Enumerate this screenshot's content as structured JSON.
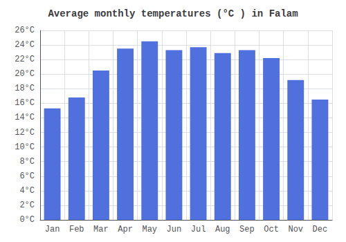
{
  "chart_data": {
    "type": "bar",
    "title": "Average monthly temperatures (°C ) in Falam",
    "categories": [
      "Jan",
      "Feb",
      "Mar",
      "Apr",
      "May",
      "Jun",
      "Jul",
      "Aug",
      "Sep",
      "Oct",
      "Nov",
      "Dec"
    ],
    "values": [
      15.3,
      16.8,
      20.5,
      23.5,
      24.5,
      23.3,
      23.7,
      22.9,
      23.3,
      22.2,
      19.2,
      16.5
    ],
    "ylim": [
      0,
      26
    ],
    "yticks": [
      {
        "value": 0,
        "label": "0°C"
      },
      {
        "value": 2,
        "label": "2°C"
      },
      {
        "value": 4,
        "label": "4°C"
      },
      {
        "value": 6,
        "label": "6°C"
      },
      {
        "value": 8,
        "label": "8°C"
      },
      {
        "value": 10,
        "label": "10°C"
      },
      {
        "value": 12,
        "label": "12°C"
      },
      {
        "value": 14,
        "label": "14°C"
      },
      {
        "value": 16,
        "label": "16°C"
      },
      {
        "value": 18,
        "label": "18°C"
      },
      {
        "value": 20,
        "label": "20°C"
      },
      {
        "value": 22,
        "label": "22°C"
      },
      {
        "value": 24,
        "label": "24°C"
      },
      {
        "value": 26,
        "label": "26°C"
      }
    ],
    "grid": true
  }
}
